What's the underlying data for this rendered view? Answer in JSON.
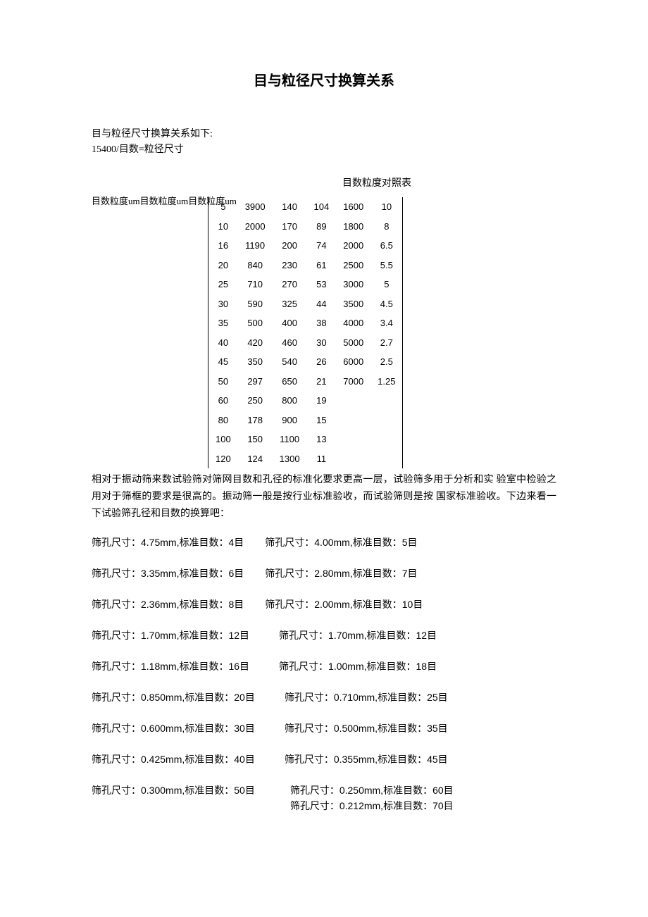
{
  "title": "目与粒径尺寸换算关系",
  "intro": {
    "line1": "目与粒径尺寸换算关系如下:",
    "line2": "15400/目数=粒径尺寸"
  },
  "table": {
    "title": "目数粒度对照表",
    "header_left": "目数粒度um目数粒度um目数粒度um",
    "rows": [
      [
        "5",
        "3900",
        "140",
        "104",
        "1600",
        "10"
      ],
      [
        "10",
        "2000",
        "170",
        "89",
        "1800",
        "8"
      ],
      [
        "16",
        "1190",
        "200",
        "74",
        "2000",
        "6.5"
      ],
      [
        "20",
        "840",
        "230",
        "61",
        "2500",
        "5.5"
      ],
      [
        "25",
        "710",
        "270",
        "53",
        "3000",
        "5"
      ],
      [
        "30",
        "590",
        "325",
        "44",
        "3500",
        "4.5"
      ],
      [
        "35",
        "500",
        "400",
        "38",
        "4000",
        "3.4"
      ],
      [
        "40",
        "420",
        "460",
        "30",
        "5000",
        "2.7"
      ],
      [
        "45",
        "350",
        "540",
        "26",
        "6000",
        "2.5"
      ],
      [
        "50",
        "297",
        "650",
        "21",
        "7000",
        "1.25"
      ],
      [
        "60",
        "250",
        "800",
        "19",
        "",
        ""
      ],
      [
        "80",
        "178",
        "900",
        "15",
        "",
        ""
      ],
      [
        "100",
        "150",
        "1100",
        "13",
        "",
        ""
      ],
      [
        "120",
        "124",
        "1300",
        "11",
        "",
        ""
      ]
    ]
  },
  "paragraph": "相对于振动筛来数试验筛对筛网目数和孔径的标准化要求更高一层，试验筛多用于分析和实 验室中检验之用对于筛框的要求是很高的。振动筛一般是按行业标准验收，而试验筛则是按 国家标准验收。下边来看一下试验筛孔径和目数的换算吧：",
  "sieve_rows": [
    {
      "left": "筛孔尺寸：4.75mm,标准目数：4目",
      "right": "筛孔尺寸：4.00mm,标准目数：5目"
    },
    {
      "left": "筛孔尺寸：3.35mm,标准目数：6目",
      "right": "筛孔尺寸：2.80mm,标准目数：7目"
    },
    {
      "left": "筛孔尺寸：2.36mm,标准目数：8目",
      "right": "筛孔尺寸：2.00mm,标准目数：10目"
    },
    {
      "left": "筛孔尺寸：1.70mm,标准目数：12目",
      "right": "筛孔尺寸：1.70mm,标准目数：12目"
    },
    {
      "left": "筛孔尺寸：1.18mm,标准目数：16目",
      "right": "筛孔尺寸：1.00mm,标准目数：18目"
    },
    {
      "left": "筛孔尺寸：0.850mm,标准目数：20目",
      "right": "筛孔尺寸：0.710mm,标准目数：25目"
    },
    {
      "left": "筛孔尺寸：0.600mm,标准目数：30目",
      "right": "筛孔尺寸：0.500mm,标准目数：35目"
    },
    {
      "left": "筛孔尺寸：0.425mm,标准目数：40目",
      "right": "筛孔尺寸：0.355mm,标准目数：45目"
    },
    {
      "left": "筛孔尺寸：0.300mm,标准目数：50目",
      "right_stack": [
        "筛孔尺寸：0.250mm,标准目数：60目",
        "筛孔尺寸：0.212mm,标准目数：70目"
      ]
    }
  ]
}
